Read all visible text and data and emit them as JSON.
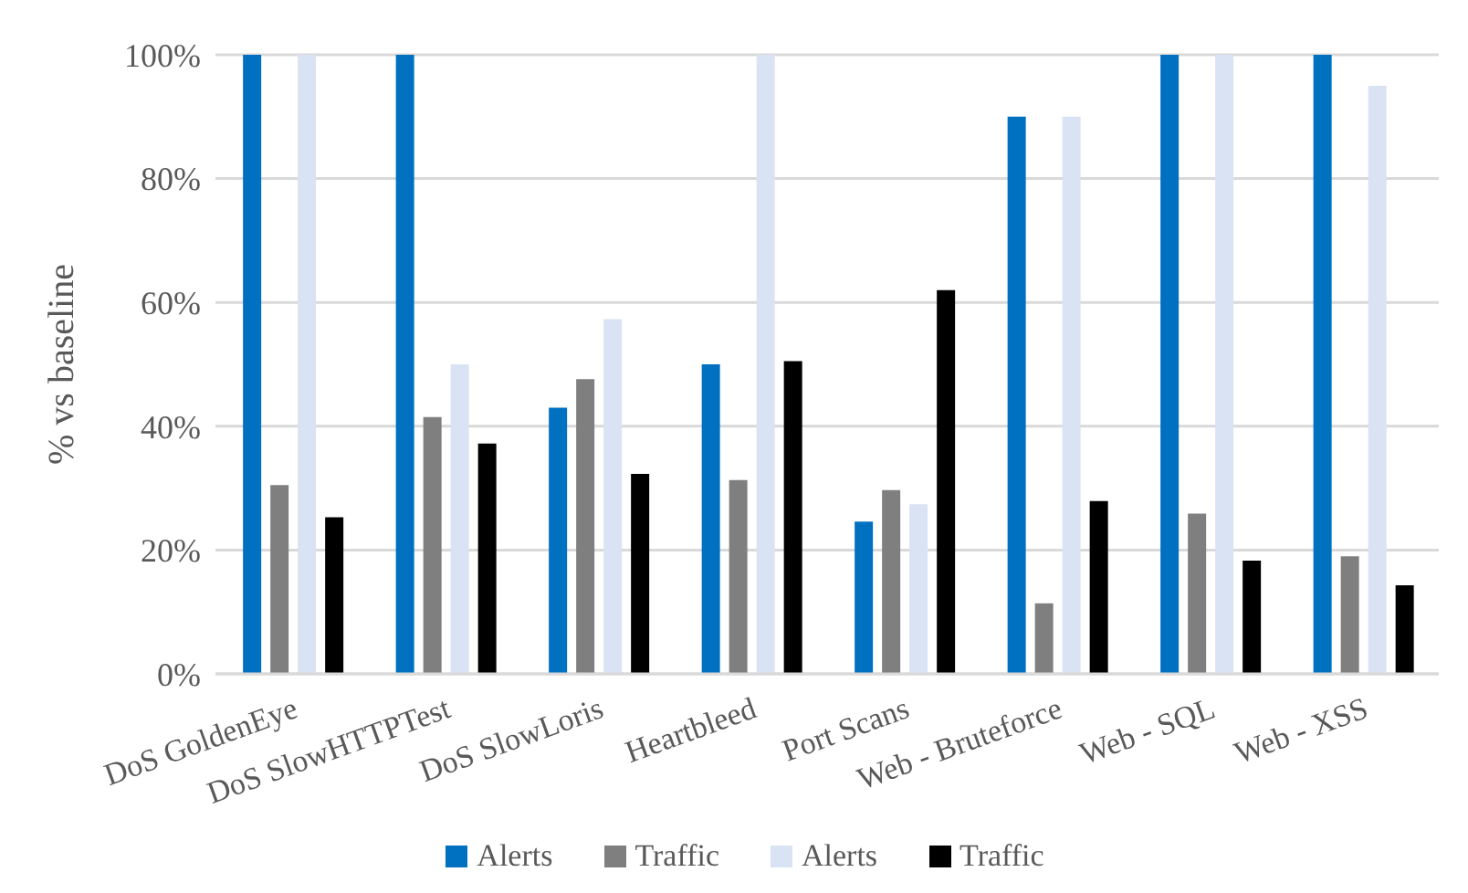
{
  "chart_data": {
    "type": "bar",
    "ylabel": "% vs baseline",
    "categories": [
      "DoS GoldenEye",
      "DoS SlowHTTPTest",
      "DoS SlowLoris",
      "Heartbleed",
      "Port Scans",
      "Web - Bruteforce",
      "Web - SQL",
      "Web - XSS"
    ],
    "series": [
      {
        "name": "Alerts",
        "color": "#0070c0",
        "values": [
          100,
          100,
          43,
          50,
          24.6,
          90,
          100,
          100
        ]
      },
      {
        "name": "Traffic",
        "color": "#7f7f7f",
        "values": [
          30.5,
          41.5,
          47.6,
          31.3,
          29.7,
          11.4,
          25.9,
          19
        ]
      },
      {
        "name": "Alerts",
        "color": "#dae3f3",
        "values": [
          100,
          50,
          57.3,
          100,
          27.4,
          90,
          100,
          95
        ]
      },
      {
        "name": "Traffic",
        "color": "#000000",
        "values": [
          25.3,
          37.2,
          32.3,
          50.5,
          62,
          27.9,
          18.3,
          14.3
        ]
      }
    ],
    "ylim": [
      0,
      100
    ],
    "yticks": [
      {
        "value": 0,
        "label": "0%"
      },
      {
        "value": 20,
        "label": "20%"
      },
      {
        "value": 40,
        "label": "40%"
      },
      {
        "value": 60,
        "label": "60%"
      },
      {
        "value": 80,
        "label": "80%"
      },
      {
        "value": 100,
        "label": "100%"
      }
    ],
    "grid": "y",
    "legend": "bottom"
  }
}
